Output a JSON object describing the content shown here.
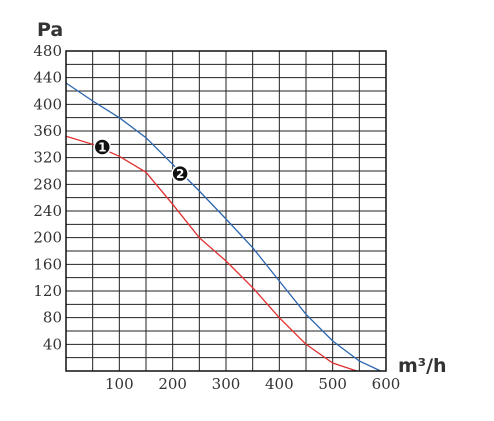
{
  "chart_data": {
    "type": "line",
    "title": "",
    "xlabel": "m³/h",
    "ylabel": "Pa",
    "xlim": [
      0,
      600
    ],
    "ylim": [
      0,
      480
    ],
    "x_ticks": [
      100,
      200,
      300,
      400,
      500,
      600
    ],
    "y_ticks": [
      40,
      80,
      120,
      160,
      200,
      240,
      280,
      320,
      360,
      400,
      440,
      480
    ],
    "grid": true,
    "series": [
      {
        "name": "1",
        "color": "#e03030",
        "points": [
          [
            0,
            352
          ],
          [
            50,
            340
          ],
          [
            100,
            322
          ],
          [
            150,
            298
          ],
          [
            200,
            250
          ],
          [
            250,
            200
          ],
          [
            300,
            165
          ],
          [
            350,
            125
          ],
          [
            400,
            80
          ],
          [
            450,
            40
          ],
          [
            500,
            12
          ],
          [
            545,
            0
          ]
        ]
      },
      {
        "name": "2",
        "color": "#2c66b0",
        "points": [
          [
            0,
            432
          ],
          [
            50,
            405
          ],
          [
            100,
            380
          ],
          [
            150,
            350
          ],
          [
            200,
            310
          ],
          [
            250,
            270
          ],
          [
            300,
            228
          ],
          [
            350,
            185
          ],
          [
            400,
            135
          ],
          [
            450,
            85
          ],
          [
            500,
            45
          ],
          [
            550,
            15
          ],
          [
            590,
            0
          ]
        ]
      }
    ],
    "markers": [
      {
        "label": "1",
        "x": 68,
        "y": 336
      },
      {
        "label": "2",
        "x": 214,
        "y": 296
      }
    ]
  }
}
